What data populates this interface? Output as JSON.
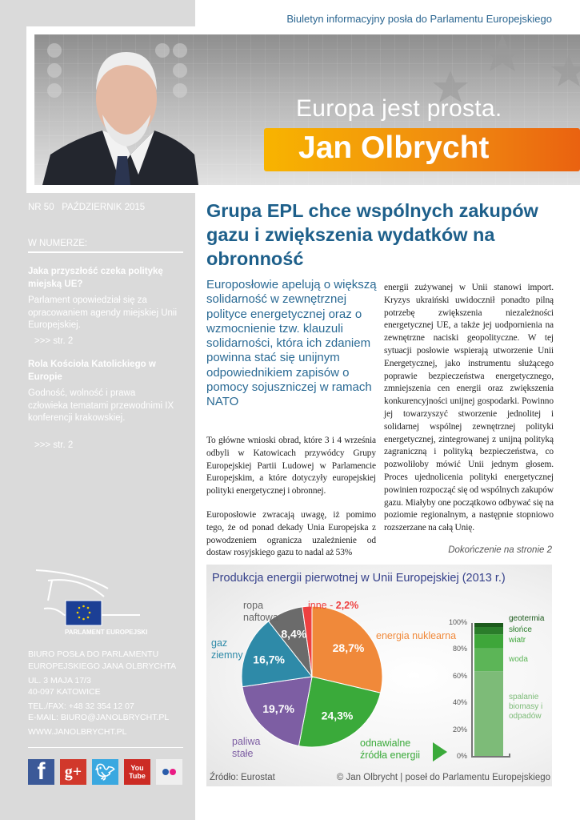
{
  "header": {
    "tagline": "Biuletyn informacyjny posła do Parlamentu Europejskiego",
    "slogan": "Europa jest prosta.",
    "name": "Jan Olbrycht"
  },
  "sidebar": {
    "issue": "NR 50",
    "date": "PAŹDZIERNIK 2015",
    "in_issue_label": "W NUMERZE:",
    "items": [
      {
        "title": "Jaka przyszłość czeka politykę miejską UE?",
        "text": "Parlament opowiedział się za opracowaniem agendy miejskiej Unii Europejskiej.",
        "link": ">>> str. 2"
      },
      {
        "title": "Rola Kościoła Katolickiego w Europie",
        "text": "Godność, wolność i prawa człowieka tematami przewodnimi IX konferencji krakowskiej.",
        "link": ">>> str. 2"
      }
    ],
    "logo_text": "PARLAMENT EUROPEJSKI",
    "office": "BIURO POSŁA DO PARLAMENTU EUROPEJSKIEGO JANA OLBRYCHTA",
    "address1": "UL. 3 MAJA 17/3",
    "address2": "40-097 KATOWICE",
    "phone": "TEL./FAX: +48 32 354 12 07",
    "email": "E-MAIL: BIURO@JANOLBRYCHT.PL",
    "web": "WWW.JANOLBRYCHT.PL",
    "social": [
      "facebook",
      "google-plus",
      "twitter",
      "youtube",
      "flickr"
    ]
  },
  "article": {
    "title": "Grupa EPL chce wspólnych zakupów gazu i zwiększenia wydatków na obronność",
    "lead": "Europosłowie apelują o większą solidarność w zewnętrznej polityce energetycznej oraz o wzmocnienie tzw. klauzuli solidarności, która ich zdaniem powinna stać się unijnym odpowiednikiem zapisów o pomocy sojuszniczej w ramach NATO",
    "p1": "To główne wnioski obrad, które 3 i 4 września odbyli w Katowicach przywódcy Grupy Europejskiej Partii Ludowej w Parlamencie Europejskim, a które dotyczyły europejskiej polityki energetycznej i obronnej.",
    "p2": "Europosłowie zwracają uwagę, iż pomimo tego, że od ponad dekady Unia Europejska z powodzeniem ogranicza uzależnienie od dostaw rosyjskiego gazu to nadal aż 53%",
    "p3": "energii zużywanej w Unii stanowi import. Kryzys ukraiński uwidocznił ponadto pilną potrzebę zwiększenia niezależności energetycznej UE, a także jej uodpornienia na zewnętrzne naciski geopolityczne. W tej sytuacji posłowie wspierają utworzenie Unii Energetycznej, jako instrumentu służącego poprawie bezpieczeństwa energetycznego, zmniejszenia cen energii oraz zwiększenia konkurencyjności unijnej gospodarki. Powinno jej towarzyszyć stworzenie jednolitej i solidarnej wspólnej zewnętrznej polityki energetycznej, zintegrowanej z unijną polityką zagraniczną i polityką bezpieczeństwa, co pozwoliłoby mówić Unii jednym głosem. Proces ujednolicenia polityki energetycznej powinien rozpocząć się od wspólnych zakupów gazu. Miałyby one początkowo odbywać się na poziomie regionalnym, a następnie stopniowo rozszerzane na całą Unię.",
    "continued": "Dokończenie na stronie 2"
  },
  "chart_data": [
    {
      "type": "pie",
      "title": "Produkcja energii pierwotnej w Unii Europejskiej (2013 r.)",
      "slices": [
        {
          "name": "energia nuklearna",
          "value": 28.7,
          "label": "28,7%",
          "color": "#f0893a"
        },
        {
          "name": "odnawialne źródła energii",
          "value": 24.3,
          "label": "24,3%",
          "color": "#3aaa3a"
        },
        {
          "name": "paliwa stałe",
          "value": 19.7,
          "label": "19,7%",
          "color": "#7d5ea3"
        },
        {
          "name": "gaz ziemny",
          "value": 16.7,
          "label": "16,7%",
          "color": "#2e8aa8"
        },
        {
          "name": "ropa naftowa",
          "value": 8.4,
          "label": "8,4%",
          "color": "#6b6b6b"
        },
        {
          "name": "inne",
          "value": 2.2,
          "label": "2,2%",
          "color": "#ee4040"
        }
      ],
      "other_label": "inne - ",
      "source": "Źródło: Eurostat",
      "copyright": "© Jan Olbrycht | poseł do Parlamentu Europejskiego"
    },
    {
      "type": "bar",
      "stacked": true,
      "ylim": [
        0,
        100
      ],
      "yticks": [
        "0%",
        "20%",
        "40%",
        "60%",
        "80%",
        "100%"
      ],
      "series": [
        {
          "name": "spalanie biomasy i odpadów",
          "value": 64,
          "color": "#7dbb78"
        },
        {
          "name": "woda",
          "value": 17,
          "color": "#5cb557"
        },
        {
          "name": "wiatr",
          "value": 10.5,
          "color": "#3ea63a"
        },
        {
          "name": "słońce",
          "value": 5.5,
          "color": "#2a7d2a"
        },
        {
          "name": "geotermia",
          "value": 3,
          "color": "#1c5a1c"
        }
      ]
    }
  ]
}
